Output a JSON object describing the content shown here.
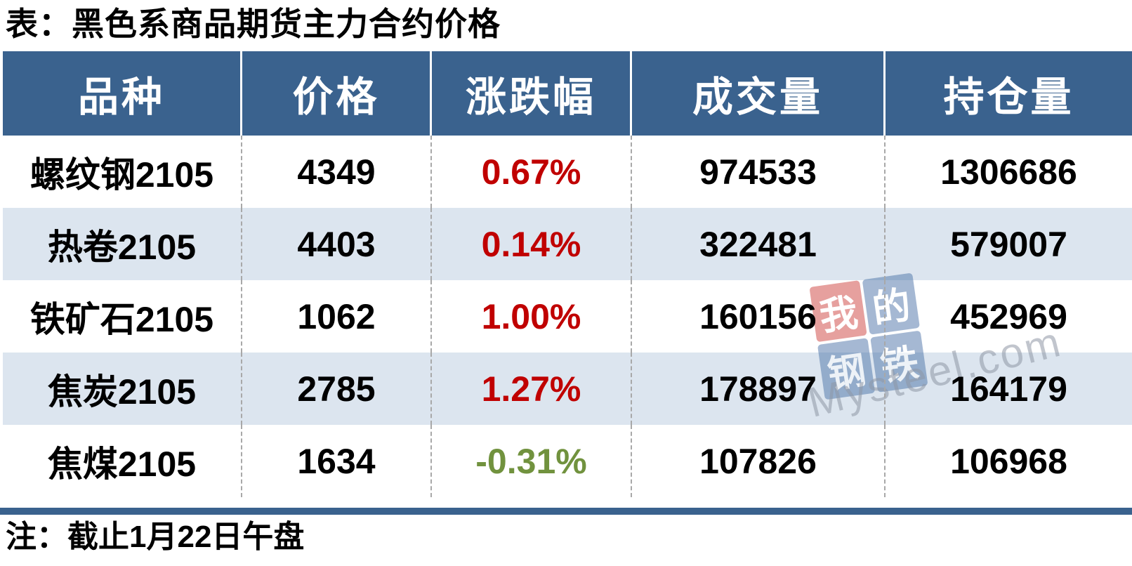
{
  "title": "表：黑色系商品期货主力合约价格",
  "note": "注：截止1月22日午盘",
  "table": {
    "headers": [
      "品种",
      "价格",
      "涨跌幅",
      "成交量",
      "持仓量"
    ],
    "rows": [
      {
        "name": "螺纹钢2105",
        "price": "4349",
        "change": "0.67%",
        "direction": "up",
        "volume": "974533",
        "open_interest": "1306686"
      },
      {
        "name": "热卷2105",
        "price": "4403",
        "change": "0.14%",
        "direction": "up",
        "volume": "322481",
        "open_interest": "579007"
      },
      {
        "name": "铁矿石2105",
        "price": "1062",
        "change": "1.00%",
        "direction": "up",
        "volume": "160156",
        "open_interest": "452969"
      },
      {
        "name": "焦炭2105",
        "price": "2785",
        "change": "1.27%",
        "direction": "up",
        "volume": "178897",
        "open_interest": "164179"
      },
      {
        "name": "焦煤2105",
        "price": "1634",
        "change": "-0.31%",
        "direction": "down",
        "volume": "107826",
        "open_interest": "106968"
      }
    ]
  },
  "colors": {
    "header_bg": "#3A628E",
    "row_alt_bg": "#DCE5EF",
    "up": "#C00000",
    "down": "#71923E",
    "accent_bar": "#3A628E",
    "divider_dash": "#A8A8A8",
    "watermark_red": "#CE4440",
    "watermark_blue": "#4D74A8"
  },
  "watermark": {
    "logo_char_1": "我",
    "logo_char_2": "的",
    "logo_char_3": "钢",
    "logo_char_4": "铁",
    "site": "Mysteel.com"
  },
  "chart_data": {
    "type": "table",
    "title": "表：黑色系商品期货主力合约价格",
    "columns": [
      "品种",
      "价格",
      "涨跌幅",
      "成交量",
      "持仓量"
    ],
    "rows": [
      [
        "螺纹钢2105",
        4349,
        "0.67%",
        974533,
        1306686
      ],
      [
        "热卷2105",
        4403,
        "0.14%",
        322481,
        579007
      ],
      [
        "铁矿石2105",
        1062,
        "1.00%",
        160156,
        452969
      ],
      [
        "焦炭2105",
        2785,
        "1.27%",
        178897,
        164179
      ],
      [
        "焦煤2105",
        1634,
        "-0.31%",
        107826,
        106968
      ]
    ],
    "note": "注：截止1月22日午盘"
  }
}
